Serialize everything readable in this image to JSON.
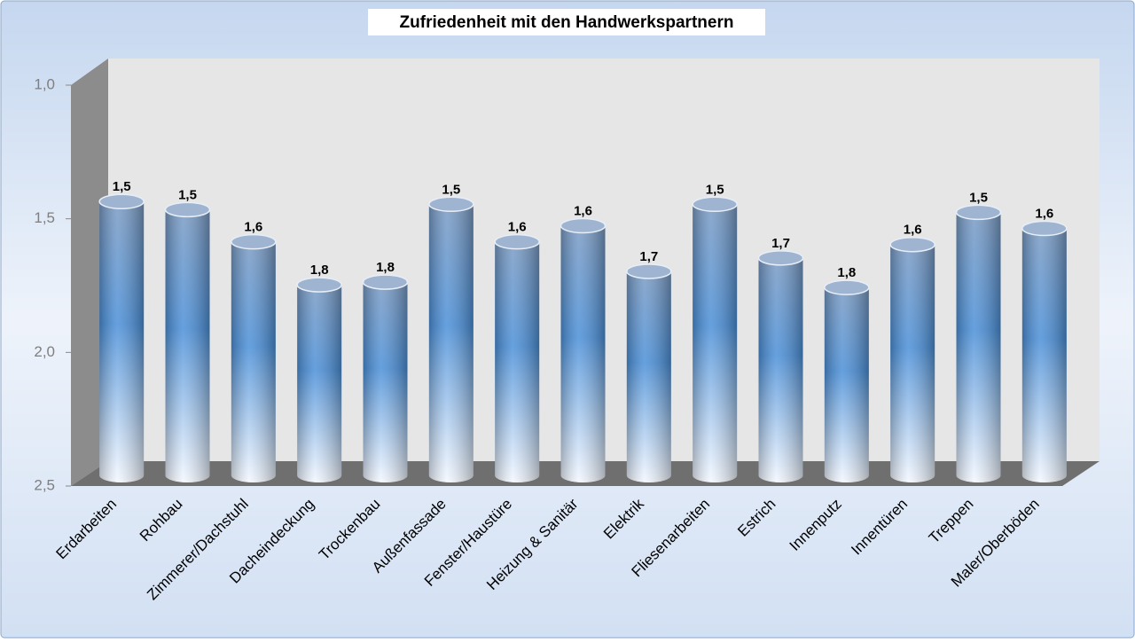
{
  "chart_data": {
    "type": "bar",
    "title": "Zufriedenheit mit den Handwerkspartnern",
    "categories": [
      "Erdarbeiten",
      "Rohbau",
      "Zimmerer/Dachstuhl",
      "Dacheindeckung",
      "Trockenbau",
      "Außenfassade",
      "Fenster/Haustüre",
      "Heizung & Sanitär",
      "Elektrik",
      "Fliesenarbeiten",
      "Estrich",
      "Innenputz",
      "Innentüren",
      "Treppen",
      "Maler/Oberböden"
    ],
    "values": [
      1.48,
      1.51,
      1.63,
      1.79,
      1.78,
      1.49,
      1.63,
      1.57,
      1.74,
      1.49,
      1.69,
      1.8,
      1.64,
      1.52,
      1.58
    ],
    "value_labels": [
      "1,5",
      "1,5",
      "1,6",
      "1,8",
      "1,8",
      "1,5",
      "1,6",
      "1,6",
      "1,7",
      "1,5",
      "1,7",
      "1,8",
      "1,6",
      "1,5",
      "1,6"
    ],
    "color": "#4a8fd8",
    "ylim": [
      2.5,
      1.0
    ],
    "yticks": [
      {
        "value": 2.5,
        "label": "2,5"
      },
      {
        "value": 2.0,
        "label": "2,0"
      },
      {
        "value": 1.5,
        "label": "1,5"
      },
      {
        "value": 1.0,
        "label": "1,0"
      }
    ],
    "y_inverted": true
  }
}
